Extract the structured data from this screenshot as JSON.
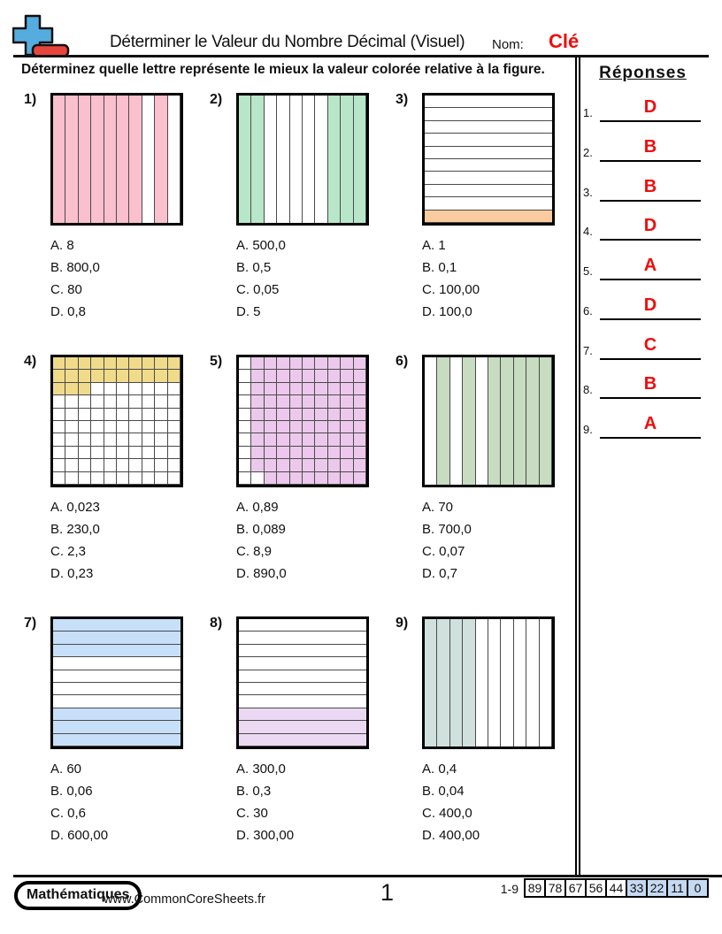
{
  "header": {
    "title": "Déterminer le Valeur du Nombre Décimal (Visuel)",
    "name_label": "Nom:",
    "name_value": "Clé",
    "accent_red": "#f00d0d",
    "logo_blue": "#55acdf",
    "logo_red": "#e8443e"
  },
  "instruction": "Déterminez quelle lettre représente le mieux la valeur colorée relative à la figure.",
  "answers": {
    "title": "Réponses",
    "items": [
      {
        "num": "1.",
        "letter": "D"
      },
      {
        "num": "2.",
        "letter": "B"
      },
      {
        "num": "3.",
        "letter": "B"
      },
      {
        "num": "4.",
        "letter": "D"
      },
      {
        "num": "5.",
        "letter": "A"
      },
      {
        "num": "6.",
        "letter": "D"
      },
      {
        "num": "7.",
        "letter": "C"
      },
      {
        "num": "8.",
        "letter": "B"
      },
      {
        "num": "9.",
        "letter": "A"
      }
    ]
  },
  "problems": [
    {
      "label": "1)",
      "figure": {
        "kind": "columns",
        "color": "#fbc0ce",
        "pattern": [
          "1111111010"
        ]
      },
      "choices": [
        "A. 8",
        "B. 800,0",
        "C. 80",
        "D. 0,8"
      ]
    },
    {
      "label": "2)",
      "figure": {
        "kind": "columns",
        "color": "#b7e7c8",
        "pattern": [
          "1100000111"
        ]
      },
      "choices": [
        "A. 500,0",
        "B. 0,5",
        "C. 0,05",
        "D. 5"
      ]
    },
    {
      "label": "3)",
      "figure": {
        "kind": "rows",
        "color": "#fbcba0",
        "pattern": [
          "0000000001"
        ]
      },
      "choices": [
        "A. 1",
        "B. 0,1",
        "C. 100,00",
        "D. 100,0"
      ]
    },
    {
      "label": "4)",
      "figure": {
        "kind": "grid",
        "color": "#f0db8b",
        "pattern": [
          "1111111111",
          "1111111111",
          "1110000000",
          "0000000000",
          "0000000000",
          "0000000000",
          "0000000000",
          "0000000000",
          "0000000000",
          "0000000000"
        ]
      },
      "choices": [
        "A. 0,023",
        "B. 230,0",
        "C. 2,3",
        "D. 0,23"
      ]
    },
    {
      "label": "5)",
      "figure": {
        "kind": "grid",
        "color": "#ecc9ec",
        "pattern": [
          "0111111111",
          "0111111111",
          "0111111111",
          "0111111111",
          "0111111111",
          "0111111111",
          "0111111111",
          "0111111111",
          "0111111111",
          "0011111111"
        ]
      },
      "choices": [
        "A. 0,89",
        "B. 0,089",
        "C. 8,9",
        "D. 890,0"
      ]
    },
    {
      "label": "6)",
      "figure": {
        "kind": "columns",
        "color": "#c7dcc0",
        "pattern": [
          "0101011111"
        ]
      },
      "choices": [
        "A. 70",
        "B. 700,0",
        "C. 0,07",
        "D. 0,7"
      ]
    },
    {
      "label": "7)",
      "figure": {
        "kind": "rows",
        "color": "#c8dffa",
        "pattern": [
          "1110000111"
        ]
      },
      "choices": [
        "A. 60",
        "B. 0,06",
        "C. 0,6",
        "D. 600,00"
      ]
    },
    {
      "label": "8)",
      "figure": {
        "kind": "rows",
        "color": "#ebd9f3",
        "pattern": [
          "0000000111"
        ]
      },
      "choices": [
        "A. 300,0",
        "B. 0,3",
        "C. 30",
        "D. 300,00"
      ]
    },
    {
      "label": "9)",
      "figure": {
        "kind": "columns",
        "color": "#cfe0dd",
        "pattern": [
          "1111000000"
        ]
      },
      "choices": [
        "A. 0,4",
        "B. 0,04",
        "C. 400,0",
        "D. 400,00"
      ]
    }
  ],
  "footer": {
    "badge": "Mathématiques",
    "website": "www.CommonCoreSheets.fr",
    "page_number": "1",
    "score_label": "1-9",
    "score_shade_color": "#c5d9f1",
    "score_cells": [
      {
        "value": "89",
        "shaded": false
      },
      {
        "value": "78",
        "shaded": false
      },
      {
        "value": "67",
        "shaded": false
      },
      {
        "value": "56",
        "shaded": false
      },
      {
        "value": "44",
        "shaded": false
      },
      {
        "value": "33",
        "shaded": true
      },
      {
        "value": "22",
        "shaded": true
      },
      {
        "value": "11",
        "shaded": true
      },
      {
        "value": "0",
        "shaded": true
      }
    ]
  }
}
